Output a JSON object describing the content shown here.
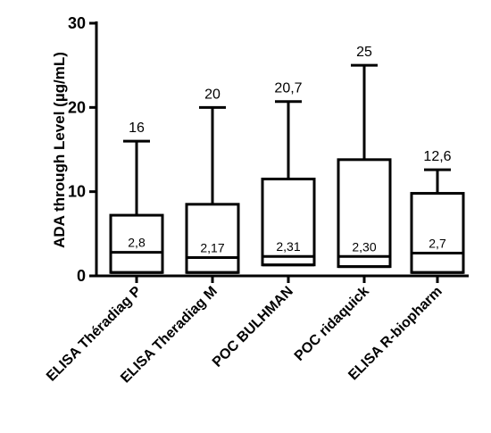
{
  "chart_data": {
    "type": "box",
    "ylabel": "ADA through  Level (µg/mL)",
    "ylim": [
      0,
      30
    ],
    "yticks": [
      0,
      10,
      20,
      30
    ],
    "categories": [
      "ELISA Théradiag P",
      "ELISA Theradiag M",
      "POC BULHMAN",
      "POC ridaquick",
      "ELISA R-biopharm"
    ],
    "boxes": [
      {
        "min": 0.4,
        "q1": 0.4,
        "median": 2.8,
        "q3": 7.2,
        "max": 16,
        "max_label": "16",
        "median_label": "2,8"
      },
      {
        "min": 0.4,
        "q1": 0.4,
        "median": 2.17,
        "q3": 8.5,
        "max": 20,
        "max_label": "20",
        "median_label": "2,17"
      },
      {
        "min": 1.3,
        "q1": 1.3,
        "median": 2.31,
        "q3": 11.5,
        "max": 20.7,
        "max_label": "20,7",
        "median_label": "2,31"
      },
      {
        "min": 1.1,
        "q1": 1.1,
        "median": 2.3,
        "q3": 13.8,
        "max": 25,
        "max_label": "25",
        "median_label": "2,30"
      },
      {
        "min": 0.4,
        "q1": 0.4,
        "median": 2.7,
        "q3": 9.8,
        "max": 12.6,
        "max_label": "12,6",
        "median_label": "2,7"
      }
    ],
    "grid": false,
    "legend": "none"
  }
}
